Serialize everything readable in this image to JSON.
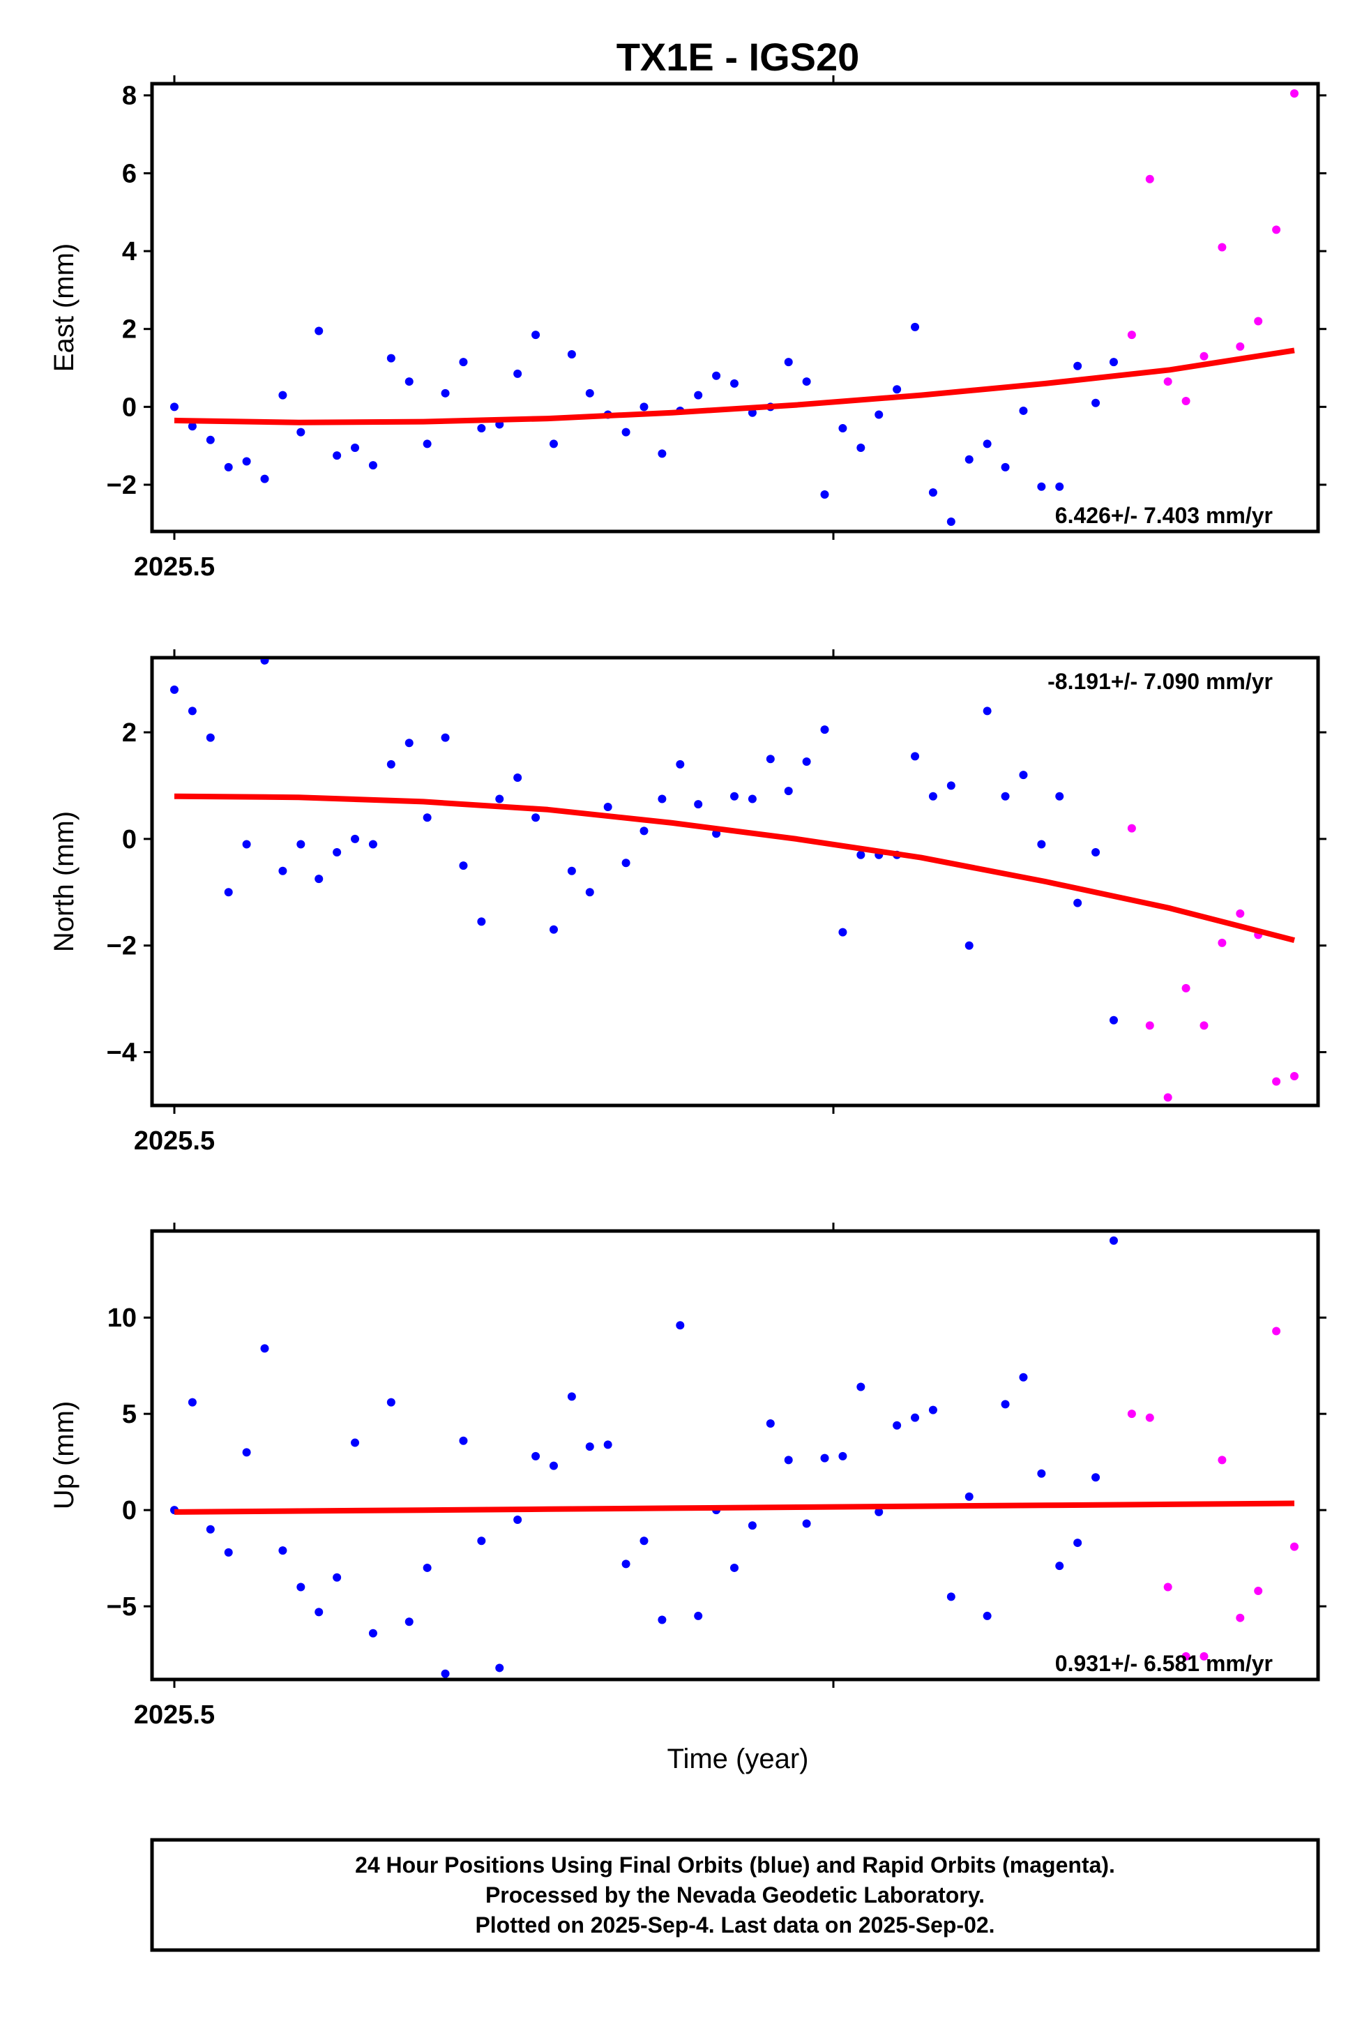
{
  "title": "TX1E - IGS20",
  "xlabel": "Time (year)",
  "x_tick_label": "2025.5",
  "colors": {
    "final": "#0000ff",
    "rapid": "#ff00ff",
    "fit": "#ff0000",
    "frame": "#000000"
  },
  "caption": [
    "24 Hour Positions Using Final Orbits (blue) and Rapid Orbits (magenta).",
    "Processed by the Nevada Geodetic Laboratory.",
    "Plotted on 2025-Sep-4. Last data on 2025-Sep-02."
  ],
  "chart_data": [
    {
      "type": "scatter",
      "ylabel": "East (mm)",
      "rate_label": "6.426+/- 7.403 mm/yr",
      "rate_position": "bottom-right",
      "ylim": [
        -3.2,
        8.3
      ],
      "yticks": [
        -2,
        0,
        2,
        4,
        6,
        8
      ],
      "series": [
        {
          "values": [
            0.0,
            -0.5,
            -0.85,
            -1.55,
            -1.4,
            -1.85,
            0.3,
            -0.65,
            1.95,
            -1.25,
            -1.05,
            -1.5,
            1.25,
            0.65,
            -0.95,
            0.35,
            1.15,
            -0.55,
            -0.45,
            0.85,
            1.85,
            -0.95,
            1.35,
            0.35,
            -0.2,
            -0.65,
            0.0,
            -1.2,
            -0.1,
            0.3,
            0.8,
            0.6,
            -0.15,
            0.0,
            1.15,
            0.65,
            -2.25,
            -0.55,
            -1.05,
            -0.2,
            0.45,
            2.05,
            -2.2,
            -2.95,
            -1.35,
            -0.95,
            -1.55,
            -0.1,
            -2.05,
            -2.05,
            1.05,
            0.1,
            1.15
          ]
        },
        {
          "values": [
            1.85,
            5.85,
            0.65,
            0.15,
            1.3,
            4.1,
            1.55,
            2.2,
            4.55,
            8.05
          ]
        }
      ],
      "fit_y": [
        -0.35,
        -0.4,
        -0.38,
        -0.3,
        -0.15,
        0.05,
        0.3,
        0.6,
        0.95,
        1.45
      ]
    },
    {
      "type": "scatter",
      "ylabel": "North (mm)",
      "rate_label": "-8.191+/- 7.090 mm/yr",
      "rate_position": "top-right",
      "ylim": [
        -5.0,
        3.4
      ],
      "yticks": [
        -4,
        -2,
        0,
        2
      ],
      "series": [
        {
          "values": [
            2.8,
            2.4,
            1.9,
            -1.0,
            -0.1,
            3.35,
            -0.6,
            -0.1,
            -0.75,
            -0.25,
            0.0,
            -0.1,
            1.4,
            1.8,
            0.4,
            1.9,
            -0.5,
            -1.55,
            0.75,
            1.15,
            0.4,
            -1.7,
            -0.6,
            -1.0,
            0.6,
            -0.45,
            0.15,
            0.75,
            1.4,
            0.65,
            0.1,
            0.8,
            0.75,
            1.5,
            0.9,
            1.45,
            2.05,
            -1.75,
            -0.3,
            -0.3,
            -0.3,
            1.55,
            0.8,
            1.0,
            -2.0,
            2.4,
            0.8,
            1.2,
            -0.1,
            0.8,
            -1.2,
            -0.25,
            -3.4
          ]
        },
        {
          "values": [
            0.2,
            -3.5,
            -4.85,
            -2.8,
            -3.5,
            -1.95,
            -1.4,
            -1.8,
            -4.55,
            -4.45
          ]
        }
      ],
      "fit_y": [
        0.8,
        0.78,
        0.7,
        0.55,
        0.3,
        0.0,
        -0.35,
        -0.8,
        -1.3,
        -1.9
      ]
    },
    {
      "type": "scatter",
      "ylabel": "Up (mm)",
      "rate_label": "0.931+/- 6.581 mm/yr",
      "rate_position": "bottom-right",
      "ylim": [
        -8.8,
        14.5
      ],
      "yticks": [
        -5,
        0,
        5,
        10
      ],
      "series": [
        {
          "values": [
            0.0,
            5.6,
            -1.0,
            -2.2,
            3.0,
            8.4,
            -2.1,
            -4.0,
            -5.3,
            -3.5,
            3.5,
            -6.4,
            5.6,
            -5.8,
            -3.0,
            -8.5,
            3.6,
            -1.6,
            -8.2,
            -0.5,
            2.8,
            2.3,
            5.9,
            3.3,
            3.4,
            -2.8,
            -1.6,
            -5.7,
            9.6,
            -5.5,
            0.0,
            -3.0,
            -0.8,
            4.5,
            2.6,
            -0.7,
            2.7,
            2.8,
            6.4,
            -0.1,
            4.4,
            4.8,
            5.2,
            -4.5,
            0.7,
            -5.5,
            5.5,
            6.9,
            1.9,
            -2.9,
            -1.7,
            1.7,
            14.0
          ]
        },
        {
          "values": [
            5.0,
            4.8,
            -4.0,
            -7.6,
            -7.6,
            2.6,
            -5.6,
            -4.2,
            9.3,
            -1.9
          ]
        }
      ],
      "fit_y": [
        -0.1,
        -0.05,
        0.0,
        0.05,
        0.1,
        0.15,
        0.2,
        0.25,
        0.3,
        0.35
      ]
    }
  ]
}
